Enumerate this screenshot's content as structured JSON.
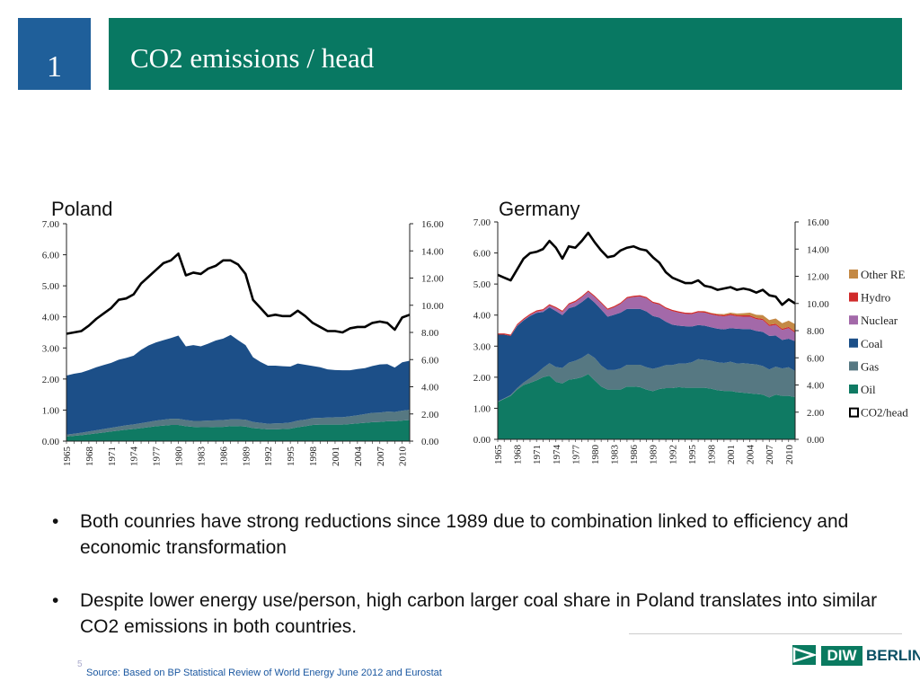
{
  "header": {
    "slide_number": "1",
    "title": "CO2 emissions / head"
  },
  "colors": {
    "oil": "#0f7a63",
    "gas": "#567882",
    "coal": "#1c4f88",
    "nuclear": "#a369a9",
    "hydro": "#d02a2a",
    "other_re": "#c48945",
    "co2": "#000000",
    "header_blue": "#1f5f9a",
    "header_green": "#087862"
  },
  "chart_data": [
    {
      "type": "area",
      "title": "Poland",
      "x_tick_labels": [
        "1965",
        "1968",
        "1971",
        "1974",
        "1977",
        "1980",
        "1983",
        "1986",
        "1989",
        "1992",
        "1995",
        "1998",
        "2001",
        "2004",
        "2007",
        "2010"
      ],
      "x": [
        1965,
        1966,
        1967,
        1968,
        1969,
        1970,
        1971,
        1972,
        1973,
        1974,
        1975,
        1976,
        1977,
        1978,
        1979,
        1980,
        1981,
        1982,
        1983,
        1984,
        1985,
        1986,
        1987,
        1988,
        1989,
        1990,
        1991,
        1992,
        1993,
        1994,
        1995,
        1996,
        1997,
        1998,
        1999,
        2000,
        2001,
        2002,
        2003,
        2004,
        2005,
        2006,
        2007,
        2008,
        2009,
        2010,
        2011
      ],
      "left_axis": {
        "ylim": [
          0,
          7
        ],
        "ticks": [
          "0.00",
          "1.00",
          "2.00",
          "3.00",
          "4.00",
          "5.00",
          "6.00",
          "7.00"
        ]
      },
      "right_axis": {
        "ylim": [
          0,
          16
        ],
        "ticks": [
          "0.00",
          "2.00",
          "4.00",
          "6.00",
          "8.00",
          "10.00",
          "12.00",
          "14.00",
          "16.00"
        ]
      },
      "series": [
        {
          "name": "Oil",
          "color_key": "oil",
          "values": [
            0.15,
            0.17,
            0.19,
            0.22,
            0.25,
            0.28,
            0.31,
            0.34,
            0.37,
            0.39,
            0.42,
            0.45,
            0.48,
            0.5,
            0.52,
            0.52,
            0.48,
            0.46,
            0.45,
            0.45,
            0.46,
            0.46,
            0.48,
            0.48,
            0.47,
            0.42,
            0.4,
            0.38,
            0.38,
            0.39,
            0.4,
            0.45,
            0.48,
            0.52,
            0.53,
            0.53,
            0.53,
            0.53,
            0.55,
            0.57,
            0.59,
            0.61,
            0.62,
            0.64,
            0.64,
            0.66,
            0.68
          ]
        },
        {
          "name": "Gas",
          "color_key": "gas",
          "values": [
            0.06,
            0.07,
            0.08,
            0.09,
            0.1,
            0.11,
            0.12,
            0.13,
            0.14,
            0.15,
            0.16,
            0.17,
            0.18,
            0.19,
            0.2,
            0.2,
            0.2,
            0.19,
            0.2,
            0.21,
            0.21,
            0.22,
            0.22,
            0.22,
            0.22,
            0.2,
            0.19,
            0.18,
            0.19,
            0.19,
            0.2,
            0.21,
            0.21,
            0.22,
            0.22,
            0.23,
            0.24,
            0.24,
            0.25,
            0.26,
            0.28,
            0.3,
            0.3,
            0.31,
            0.3,
            0.32,
            0.33
          ]
        },
        {
          "name": "Coal",
          "color_key": "coal",
          "values": [
            1.9,
            1.93,
            1.94,
            1.98,
            2.03,
            2.06,
            2.09,
            2.15,
            2.17,
            2.21,
            2.36,
            2.46,
            2.52,
            2.56,
            2.6,
            2.68,
            2.37,
            2.44,
            2.4,
            2.48,
            2.57,
            2.62,
            2.72,
            2.55,
            2.4,
            2.08,
            1.96,
            1.87,
            1.86,
            1.83,
            1.8,
            1.84,
            1.77,
            1.68,
            1.63,
            1.55,
            1.52,
            1.51,
            1.48,
            1.49,
            1.48,
            1.51,
            1.55,
            1.53,
            1.43,
            1.56,
            1.58
          ]
        },
        {
          "name": "CO2/head",
          "axis": "right",
          "color_key": "co2",
          "values": [
            7.9,
            8.0,
            8.1,
            8.5,
            9.0,
            9.4,
            9.8,
            10.4,
            10.5,
            10.8,
            11.6,
            12.1,
            12.6,
            13.1,
            13.3,
            13.8,
            12.2,
            12.4,
            12.3,
            12.7,
            12.9,
            13.3,
            13.3,
            13.0,
            12.3,
            10.4,
            9.8,
            9.2,
            9.3,
            9.2,
            9.2,
            9.6,
            9.2,
            8.7,
            8.4,
            8.1,
            8.1,
            8.0,
            8.3,
            8.4,
            8.4,
            8.7,
            8.8,
            8.7,
            8.2,
            9.1,
            9.3
          ]
        }
      ]
    },
    {
      "type": "area",
      "title": "Germany",
      "x_tick_labels": [
        "1965",
        "1968",
        "1971",
        "1974",
        "1977",
        "1980",
        "1983",
        "1986",
        "1989",
        "1992",
        "1995",
        "1998",
        "2001",
        "2004",
        "2007",
        "2010"
      ],
      "x": [
        1965,
        1966,
        1967,
        1968,
        1969,
        1970,
        1971,
        1972,
        1973,
        1974,
        1975,
        1976,
        1977,
        1978,
        1979,
        1980,
        1981,
        1982,
        1983,
        1984,
        1985,
        1986,
        1987,
        1988,
        1989,
        1990,
        1991,
        1992,
        1993,
        1994,
        1995,
        1996,
        1997,
        1998,
        1999,
        2000,
        2001,
        2002,
        2003,
        2004,
        2005,
        2006,
        2007,
        2008,
        2009,
        2010,
        2011
      ],
      "left_axis": {
        "ylim": [
          0,
          7
        ],
        "ticks": [
          "0.00",
          "1.00",
          "2.00",
          "3.00",
          "4.00",
          "5.00",
          "6.00",
          "7.00"
        ]
      },
      "right_axis": {
        "ylim": [
          0,
          16
        ],
        "ticks": [
          "0.00",
          "2.00",
          "4.00",
          "6.00",
          "8.00",
          "10.00",
          "12.00",
          "14.00",
          "16.00"
        ]
      },
      "legend": {
        "position": "right",
        "entries": [
          "Other RE",
          "Hydro",
          "Nuclear",
          "Coal",
          "Gas",
          "Oil",
          "CO2/head"
        ]
      },
      "series": [
        {
          "name": "Oil",
          "color_key": "oil",
          "values": [
            1.2,
            1.3,
            1.4,
            1.6,
            1.75,
            1.82,
            1.9,
            2.0,
            2.05,
            1.85,
            1.8,
            1.92,
            1.95,
            2.0,
            2.1,
            1.9,
            1.7,
            1.6,
            1.6,
            1.6,
            1.7,
            1.7,
            1.68,
            1.6,
            1.55,
            1.62,
            1.65,
            1.65,
            1.68,
            1.66,
            1.66,
            1.66,
            1.66,
            1.63,
            1.58,
            1.56,
            1.56,
            1.52,
            1.5,
            1.48,
            1.46,
            1.44,
            1.35,
            1.44,
            1.4,
            1.4,
            1.36
          ]
        },
        {
          "name": "Gas",
          "color_key": "gas",
          "values": [
            0.02,
            0.02,
            0.03,
            0.05,
            0.08,
            0.15,
            0.22,
            0.3,
            0.4,
            0.48,
            0.5,
            0.55,
            0.58,
            0.62,
            0.66,
            0.72,
            0.68,
            0.63,
            0.63,
            0.68,
            0.7,
            0.7,
            0.72,
            0.72,
            0.72,
            0.7,
            0.74,
            0.74,
            0.76,
            0.78,
            0.82,
            0.92,
            0.9,
            0.9,
            0.9,
            0.9,
            0.94,
            0.92,
            0.95,
            0.95,
            0.95,
            0.92,
            0.9,
            0.9,
            0.88,
            0.92,
            0.84
          ]
        },
        {
          "name": "Coal",
          "color_key": "coal",
          "values": [
            2.15,
            2.05,
            1.9,
            2.0,
            2.0,
            2.0,
            1.95,
            1.8,
            1.8,
            1.8,
            1.7,
            1.75,
            1.75,
            1.8,
            1.82,
            1.78,
            1.8,
            1.72,
            1.78,
            1.8,
            1.8,
            1.8,
            1.8,
            1.8,
            1.7,
            1.6,
            1.4,
            1.3,
            1.22,
            1.2,
            1.15,
            1.1,
            1.1,
            1.08,
            1.08,
            1.08,
            1.08,
            1.12,
            1.1,
            1.12,
            1.08,
            1.1,
            1.08,
            1.0,
            0.92,
            0.92,
            0.96
          ]
        },
        {
          "name": "Nuclear",
          "color_key": "nuclear",
          "values": [
            0.0,
            0.0,
            0.0,
            0.02,
            0.02,
            0.03,
            0.04,
            0.05,
            0.06,
            0.09,
            0.1,
            0.12,
            0.14,
            0.15,
            0.17,
            0.18,
            0.2,
            0.22,
            0.24,
            0.28,
            0.34,
            0.38,
            0.4,
            0.42,
            0.42,
            0.42,
            0.42,
            0.44,
            0.42,
            0.4,
            0.4,
            0.41,
            0.42,
            0.41,
            0.42,
            0.42,
            0.42,
            0.4,
            0.4,
            0.4,
            0.38,
            0.38,
            0.32,
            0.34,
            0.32,
            0.34,
            0.27
          ]
        },
        {
          "name": "Hydro",
          "color_key": "hydro",
          "values": [
            0.04,
            0.04,
            0.04,
            0.04,
            0.04,
            0.04,
            0.04,
            0.04,
            0.04,
            0.04,
            0.04,
            0.04,
            0.04,
            0.04,
            0.04,
            0.04,
            0.04,
            0.04,
            0.04,
            0.04,
            0.04,
            0.04,
            0.04,
            0.04,
            0.04,
            0.04,
            0.04,
            0.04,
            0.04,
            0.04,
            0.04,
            0.04,
            0.04,
            0.04,
            0.04,
            0.04,
            0.04,
            0.04,
            0.04,
            0.04,
            0.04,
            0.04,
            0.04,
            0.04,
            0.04,
            0.04,
            0.04
          ]
        },
        {
          "name": "Other RE",
          "color_key": "other_re",
          "values": [
            0.0,
            0.0,
            0.0,
            0.0,
            0.0,
            0.0,
            0.0,
            0.0,
            0.0,
            0.0,
            0.0,
            0.0,
            0.0,
            0.0,
            0.0,
            0.0,
            0.0,
            0.0,
            0.0,
            0.0,
            0.0,
            0.0,
            0.0,
            0.0,
            0.0,
            0.0,
            0.0,
            0.0,
            0.0,
            0.0,
            0.0,
            0.0,
            0.01,
            0.01,
            0.02,
            0.03,
            0.04,
            0.05,
            0.07,
            0.09,
            0.1,
            0.12,
            0.15,
            0.17,
            0.18,
            0.2,
            0.24
          ]
        },
        {
          "name": "CO2/head",
          "axis": "right",
          "color_key": "co2",
          "values": [
            12.1,
            11.9,
            11.7,
            12.5,
            13.3,
            13.7,
            13.8,
            14.0,
            14.6,
            14.1,
            13.3,
            14.2,
            14.1,
            14.6,
            15.2,
            14.5,
            13.9,
            13.4,
            13.5,
            13.9,
            14.1,
            14.2,
            14.0,
            13.9,
            13.4,
            13.0,
            12.3,
            11.9,
            11.7,
            11.5,
            11.5,
            11.7,
            11.3,
            11.2,
            11.0,
            11.1,
            11.2,
            11.0,
            11.1,
            11.0,
            10.8,
            11.0,
            10.6,
            10.5,
            9.9,
            10.3,
            10.0
          ]
        }
      ]
    }
  ],
  "bullets": [
    "Both counries have strong reductions since 1989 due to combination linked to efficiency and economic transformation",
    "Despite lower energy use/person, high carbon larger coal share in Poland translates into similar CO2 emissions in both countries."
  ],
  "bullet_symbol": "•",
  "footer": {
    "page_number": "5",
    "source": "Source: Based on BP Statistical Review of World Energy June 2012 and Eurostat"
  },
  "logo": {
    "left_text": "DIW",
    "right_text": "BERLIN"
  }
}
